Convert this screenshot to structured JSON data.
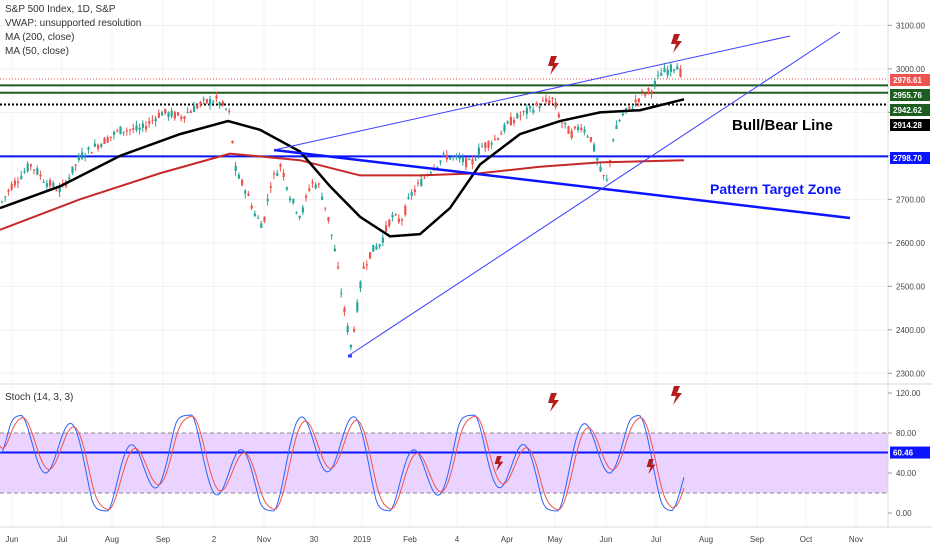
{
  "header": {
    "title": "S&P 500 Index, 1D, S&P",
    "indicators": [
      "VWAP: unsupported resolution",
      "MA (200, close)",
      "MA (50, close)"
    ]
  },
  "stoch": {
    "title": "Stoch (14, 3, 3)"
  },
  "annotations": {
    "bull_bear": "Bull/Bear Line",
    "pattern_target": "Pattern Target Zone"
  },
  "colors": {
    "up": "#26a69a",
    "down": "#ef5350",
    "ma200": "#c62828",
    "ma50": "#000000",
    "trend_blue": "#0a14ff",
    "thin_blue": "#3a3fff",
    "green_line": "#1b5e20",
    "stoch_band": "#e6c8ff",
    "lightning": "#b71c1c"
  },
  "chart_data": [
    {
      "type": "candlestick",
      "title": "S&P 500 Index, 1D, S&P",
      "x_axis_labels": [
        "Jun",
        "Jul",
        "Aug",
        "Sep",
        "2",
        "Nov",
        "30",
        "2019",
        "Feb",
        "4",
        "Apr",
        "May",
        "Jun",
        "Jul",
        "Aug",
        "Sep",
        "Oct",
        "Nov"
      ],
      "y_axis_labels": [
        2300,
        2400,
        2500,
        2600,
        2700,
        2800,
        2900,
        3000,
        3100
      ],
      "ylim": [
        2280,
        3140
      ],
      "price_tags": [
        {
          "value": "2976.61",
          "bg": "#ef5350",
          "fg": "#ffffff"
        },
        {
          "value": "2955.76",
          "bg": "#1b5e20",
          "fg": "#ffffff"
        },
        {
          "value": "2942.62",
          "bg": "#1b5e20",
          "fg": "#ffffff"
        },
        {
          "value": "2914.28",
          "bg": "#000000",
          "fg": "#ffffff"
        },
        {
          "value": "2798.70",
          "bg": "#0a14ff",
          "fg": "#ffffff"
        }
      ],
      "horizontal_levels": [
        {
          "value": 2976.61,
          "style": "dotted-red"
        },
        {
          "value": 2962,
          "style": "green"
        },
        {
          "value": 2945,
          "style": "green"
        },
        {
          "value": 2918,
          "style": "dotted-black"
        },
        {
          "value": 2798.7,
          "style": "blue"
        }
      ],
      "annotations": [
        "Bull/Bear Line",
        "Pattern Target Zone"
      ]
    },
    {
      "type": "line",
      "title": "Stoch (14, 3, 3)",
      "y_axis_labels": [
        "120.00",
        "80.00",
        "40.00",
        "0.00"
      ],
      "ylim": [
        -10,
        125
      ],
      "band": [
        20,
        80
      ],
      "level_tag": {
        "value": "60.46",
        "bg": "#0a14ff",
        "fg": "#ffffff"
      },
      "level": 60.46
    }
  ]
}
